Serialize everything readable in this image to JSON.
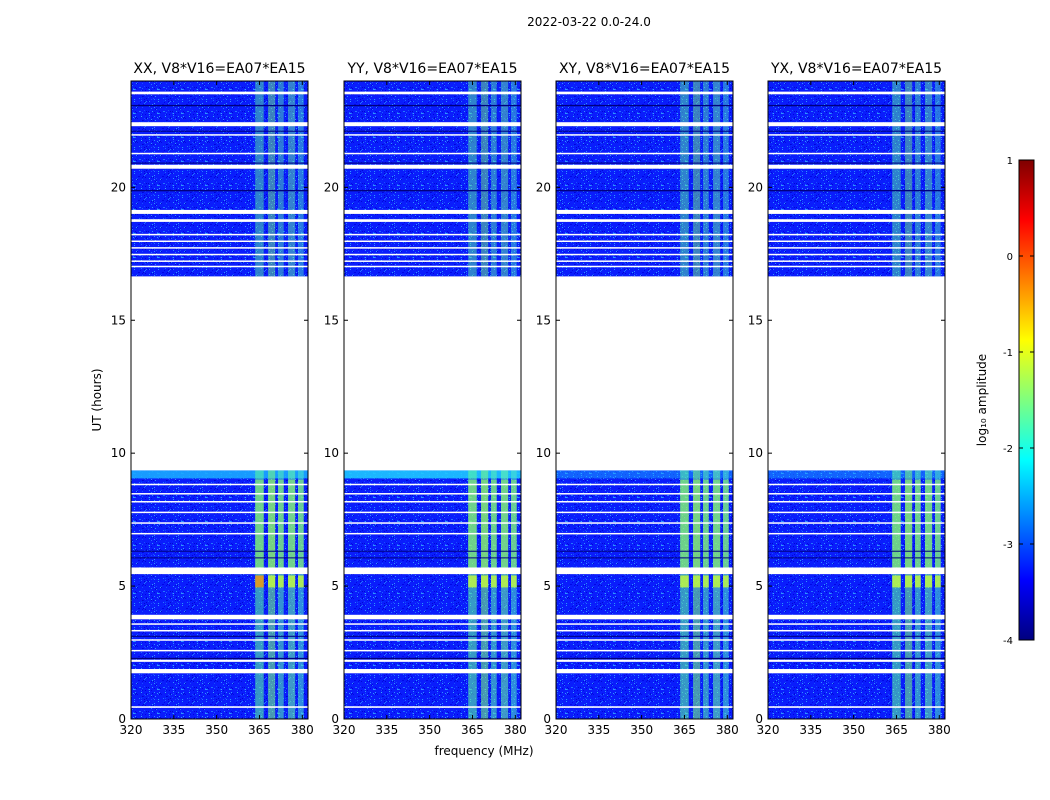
{
  "figure_title": "2022-03-22 0.0-24.0",
  "chart_data": {
    "type": "heatmap",
    "title": "2022-03-22 0.0-24.0",
    "xlabel": "frequency (MHz)",
    "ylabel": "UT (hours)",
    "xlim": [
      320,
      382
    ],
    "ylim": [
      0,
      24
    ],
    "xticks": [
      320,
      335,
      350,
      365,
      380
    ],
    "yticks": [
      0,
      5,
      10,
      15,
      20
    ],
    "panels": [
      {
        "title": "XX, V8*V16=EA07*EA15",
        "polarization": "XX"
      },
      {
        "title": "YY, V8*V16=EA07*EA15",
        "polarization": "YY"
      },
      {
        "title": "XY, V8*V16=EA07*EA15",
        "polarization": "XY"
      },
      {
        "title": "YX, V8*V16=EA07*EA15",
        "polarization": "YX"
      }
    ],
    "data_segments_ut_hours": [
      [
        0.0,
        9.35
      ],
      [
        16.65,
        24.0
      ]
    ],
    "no_data_ut_hours": [
      [
        9.35,
        16.65
      ]
    ],
    "rfi_bands_mhz": [
      [
        363.5,
        366.5
      ],
      [
        368.0,
        370.5
      ],
      [
        371.5,
        373.5
      ],
      [
        375.0,
        377.5
      ],
      [
        378.5,
        380.5
      ]
    ],
    "colorbar": {
      "label": "log₁₀ amplitude",
      "range": [
        -4,
        1
      ],
      "ticks": [
        1,
        0,
        -1,
        -2,
        -3,
        -4
      ],
      "colormap": "jet"
    },
    "colormap_stops": [
      "#00007f",
      "#0000ff",
      "#007fff",
      "#00ffff",
      "#7fff7f",
      "#ffff00",
      "#ff7f00",
      "#ff0000",
      "#7f0000"
    ]
  }
}
